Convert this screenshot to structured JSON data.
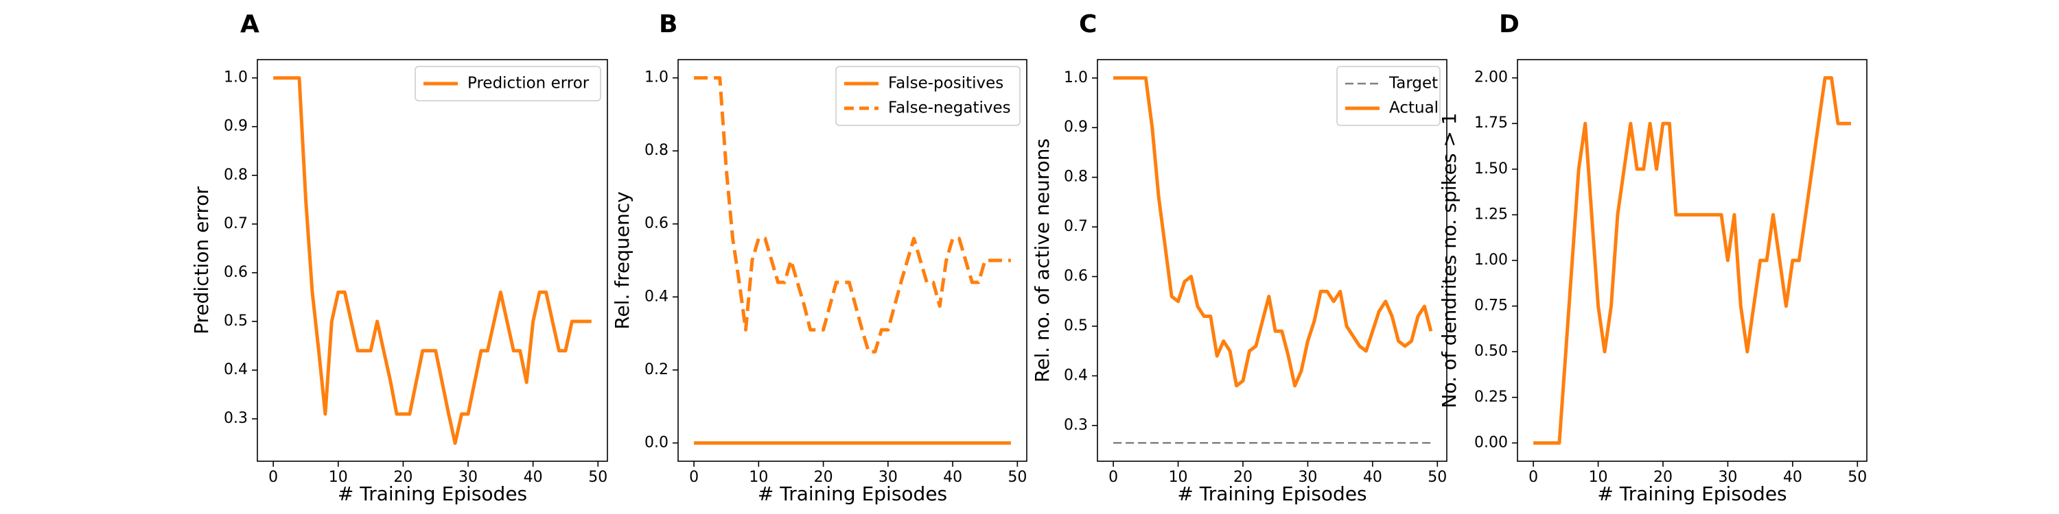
{
  "colors": {
    "series": "#ff7f0e",
    "target": "#7f7f86",
    "axis": "#000000",
    "legend_border": "#cccccc"
  },
  "chart_data": [
    {
      "type": "line",
      "panel_label": "A",
      "xlabel": "# Training Episodes",
      "ylabel": "Prediction error",
      "xlim": [
        -2.45,
        51.45
      ],
      "ylim": [
        0.213,
        1.0375
      ],
      "xticks": [
        0,
        10,
        20,
        30,
        40,
        50
      ],
      "yticks": [
        0.3,
        0.4,
        0.5,
        0.6,
        0.7,
        0.8,
        0.9,
        1.0
      ],
      "ytick_labels": [
        "0.3",
        "0.4",
        "0.5",
        "0.6",
        "0.7",
        "0.8",
        "0.9",
        "1.0"
      ],
      "legend_position": "upper-right",
      "series": [
        {
          "name": "Prediction error",
          "style": "solid",
          "x": [
            0,
            1,
            2,
            3,
            4,
            5,
            6,
            7,
            8,
            9,
            10,
            11,
            12,
            13,
            14,
            15,
            16,
            17,
            18,
            19,
            20,
            21,
            22,
            23,
            24,
            25,
            26,
            27,
            28,
            29,
            30,
            31,
            32,
            33,
            34,
            35,
            36,
            37,
            38,
            39,
            40,
            41,
            42,
            43,
            44,
            45,
            46,
            47,
            48,
            49
          ],
          "values": [
            1.0,
            1.0,
            1.0,
            1.0,
            1.0,
            0.75,
            0.56,
            0.44,
            0.31,
            0.5,
            0.56,
            0.56,
            0.5,
            0.44,
            0.44,
            0.44,
            0.5,
            0.44,
            0.38,
            0.31,
            0.31,
            0.31,
            0.375,
            0.44,
            0.44,
            0.44,
            0.375,
            0.31,
            0.25,
            0.31,
            0.31,
            0.375,
            0.44,
            0.44,
            0.5,
            0.56,
            0.5,
            0.44,
            0.44,
            0.375,
            0.5,
            0.56,
            0.56,
            0.5,
            0.44,
            0.44,
            0.5,
            0.5,
            0.5,
            0.5
          ]
        }
      ]
    },
    {
      "type": "line",
      "panel_label": "B",
      "xlabel": "# Training Episodes",
      "ylabel": "Rel. frequency",
      "xlim": [
        -2.45,
        51.45
      ],
      "ylim": [
        -0.05,
        1.05
      ],
      "xticks": [
        0,
        10,
        20,
        30,
        40,
        50
      ],
      "yticks": [
        0.0,
        0.2,
        0.4,
        0.6,
        0.8,
        1.0
      ],
      "ytick_labels": [
        "0.0",
        "0.2",
        "0.4",
        "0.6",
        "0.8",
        "1.0"
      ],
      "legend_position": "upper-right",
      "series": [
        {
          "name": "False-positives",
          "style": "solid",
          "x": [
            0,
            49
          ],
          "values": [
            0.0,
            0.0
          ]
        },
        {
          "name": "False-negatives",
          "style": "dashed",
          "x": [
            0,
            1,
            2,
            3,
            4,
            5,
            6,
            7,
            8,
            9,
            10,
            11,
            12,
            13,
            14,
            15,
            16,
            17,
            18,
            19,
            20,
            21,
            22,
            23,
            24,
            25,
            26,
            27,
            28,
            29,
            30,
            31,
            32,
            33,
            34,
            35,
            36,
            37,
            38,
            39,
            40,
            41,
            42,
            43,
            44,
            45,
            46,
            47,
            48,
            49
          ],
          "values": [
            1.0,
            1.0,
            1.0,
            1.0,
            1.0,
            0.75,
            0.56,
            0.44,
            0.31,
            0.5,
            0.56,
            0.56,
            0.5,
            0.44,
            0.44,
            0.5,
            0.44,
            0.38,
            0.31,
            0.31,
            0.31,
            0.375,
            0.44,
            0.44,
            0.44,
            0.375,
            0.31,
            0.25,
            0.25,
            0.31,
            0.31,
            0.375,
            0.44,
            0.5,
            0.56,
            0.5,
            0.44,
            0.44,
            0.375,
            0.5,
            0.56,
            0.56,
            0.5,
            0.44,
            0.44,
            0.5,
            0.5,
            0.5,
            0.5,
            0.5
          ]
        }
      ]
    },
    {
      "type": "line",
      "panel_label": "C",
      "xlabel": "# Training Episodes",
      "ylabel": "Rel. no. of active neurons",
      "xlim": [
        -2.45,
        51.45
      ],
      "ylim": [
        0.228,
        1.037
      ],
      "xticks": [
        0,
        10,
        20,
        30,
        40,
        50
      ],
      "yticks": [
        0.3,
        0.4,
        0.5,
        0.6,
        0.7,
        0.8,
        0.9,
        1.0
      ],
      "ytick_labels": [
        "0.3",
        "0.4",
        "0.5",
        "0.6",
        "0.7",
        "0.8",
        "0.9",
        "1.0"
      ],
      "legend_position": "upper-right",
      "series": [
        {
          "name": "Target",
          "style": "dashed",
          "x": [
            0,
            49
          ],
          "values": [
            0.265,
            0.265
          ]
        },
        {
          "name": "Actual",
          "style": "solid",
          "x": [
            0,
            1,
            2,
            3,
            4,
            5,
            6,
            7,
            8,
            9,
            10,
            11,
            12,
            13,
            14,
            15,
            16,
            17,
            18,
            19,
            20,
            21,
            22,
            23,
            24,
            25,
            26,
            27,
            28,
            29,
            30,
            31,
            32,
            33,
            34,
            35,
            36,
            37,
            38,
            39,
            40,
            41,
            42,
            43,
            44,
            45,
            46,
            47,
            48,
            49
          ],
          "values": [
            1.0,
            1.0,
            1.0,
            1.0,
            1.0,
            1.0,
            0.9,
            0.76,
            0.66,
            0.56,
            0.55,
            0.59,
            0.6,
            0.54,
            0.52,
            0.52,
            0.44,
            0.47,
            0.45,
            0.38,
            0.39,
            0.45,
            0.46,
            0.51,
            0.56,
            0.49,
            0.49,
            0.44,
            0.38,
            0.41,
            0.47,
            0.51,
            0.57,
            0.57,
            0.55,
            0.57,
            0.5,
            0.48,
            0.46,
            0.45,
            0.49,
            0.53,
            0.55,
            0.52,
            0.47,
            0.46,
            0.47,
            0.52,
            0.54,
            0.49
          ]
        }
      ]
    },
    {
      "type": "line",
      "panel_label": "D",
      "xlabel": "# Training Episodes",
      "ylabel": "No. of dendrites no. spikes > 1",
      "xlim": [
        -2.45,
        51.45
      ],
      "ylim": [
        -0.1,
        2.1
      ],
      "xticks": [
        0,
        10,
        20,
        30,
        40,
        50
      ],
      "yticks": [
        0.0,
        0.25,
        0.5,
        0.75,
        1.0,
        1.25,
        1.5,
        1.75,
        2.0
      ],
      "ytick_labels": [
        "0.00",
        "0.25",
        "0.50",
        "0.75",
        "1.00",
        "1.25",
        "1.50",
        "1.75",
        "2.00"
      ],
      "legend_position": "none",
      "series": [
        {
          "name": "",
          "style": "solid",
          "x": [
            0,
            1,
            2,
            3,
            4,
            5,
            6,
            7,
            8,
            9,
            10,
            11,
            12,
            13,
            14,
            15,
            16,
            17,
            18,
            19,
            20,
            21,
            22,
            23,
            24,
            25,
            26,
            27,
            28,
            29,
            30,
            31,
            32,
            33,
            34,
            35,
            36,
            37,
            38,
            39,
            40,
            41,
            42,
            43,
            44,
            45,
            46,
            47,
            48,
            49
          ],
          "values": [
            0.0,
            0.0,
            0.0,
            0.0,
            0.0,
            0.5,
            1.0,
            1.5,
            1.75,
            1.25,
            0.75,
            0.5,
            0.75,
            1.25,
            1.5,
            1.75,
            1.5,
            1.5,
            1.75,
            1.5,
            1.75,
            1.75,
            1.25,
            1.25,
            1.25,
            1.25,
            1.25,
            1.25,
            1.25,
            1.25,
            1.0,
            1.25,
            0.75,
            0.5,
            0.75,
            1.0,
            1.0,
            1.25,
            1.0,
            0.75,
            1.0,
            1.0,
            1.25,
            1.5,
            1.75,
            2.0,
            2.0,
            1.75,
            1.75,
            1.75
          ]
        }
      ]
    }
  ]
}
